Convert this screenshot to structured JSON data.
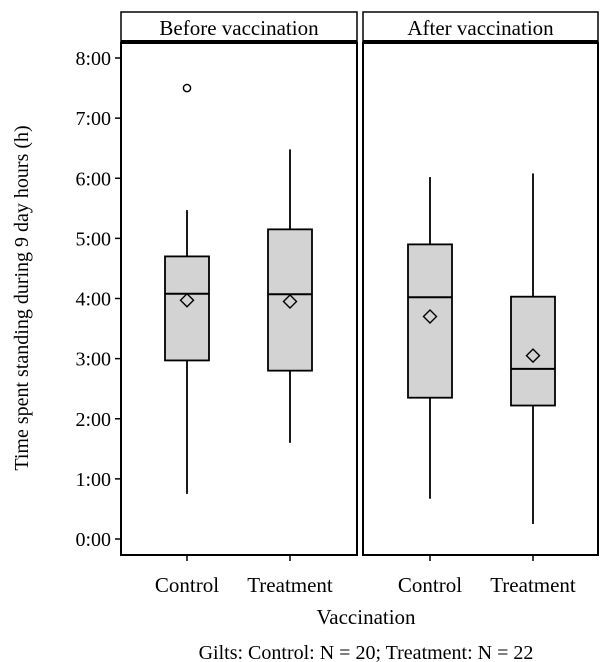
{
  "chart_data": {
    "type": "box",
    "ylabel": "Time spent standing during 9 day hours (h)",
    "xlabel": "Vaccination",
    "footnote": "Gilts: Control: N = 20; Treatment: N = 22",
    "ylim": [
      0,
      8.3
    ],
    "yticks": [
      {
        "value": 0,
        "label": "0:00"
      },
      {
        "value": 1,
        "label": "1:00"
      },
      {
        "value": 2,
        "label": "2:00"
      },
      {
        "value": 3,
        "label": "3:00"
      },
      {
        "value": 4,
        "label": "4:00"
      },
      {
        "value": 5,
        "label": "5:00"
      },
      {
        "value": 6,
        "label": "6:00"
      },
      {
        "value": 7,
        "label": "7:00"
      },
      {
        "value": 8,
        "label": "8:00"
      }
    ],
    "panels": [
      {
        "title": "Before vaccination",
        "groups": [
          {
            "category": "Control",
            "whisker_low": 0.75,
            "q1": 2.97,
            "median": 4.08,
            "q3": 4.7,
            "whisker_high": 5.47,
            "mean": 3.97,
            "outliers": [
              7.5
            ]
          },
          {
            "category": "Treatment",
            "whisker_low": 1.6,
            "q1": 2.8,
            "median": 4.07,
            "q3": 5.15,
            "whisker_high": 6.48,
            "mean": 3.95,
            "outliers": []
          }
        ]
      },
      {
        "title": "After vaccination",
        "groups": [
          {
            "category": "Control",
            "whisker_low": 0.67,
            "q1": 2.35,
            "median": 4.02,
            "q3": 4.9,
            "whisker_high": 6.02,
            "mean": 3.7,
            "outliers": []
          },
          {
            "category": "Treatment",
            "whisker_low": 0.25,
            "q1": 2.22,
            "median": 2.83,
            "q3": 4.03,
            "whisker_high": 6.08,
            "mean": 3.05,
            "outliers": []
          }
        ]
      }
    ],
    "colors": {
      "box_fill": "#d3d3d3",
      "line": "#000000",
      "background": "#ffffff"
    }
  }
}
